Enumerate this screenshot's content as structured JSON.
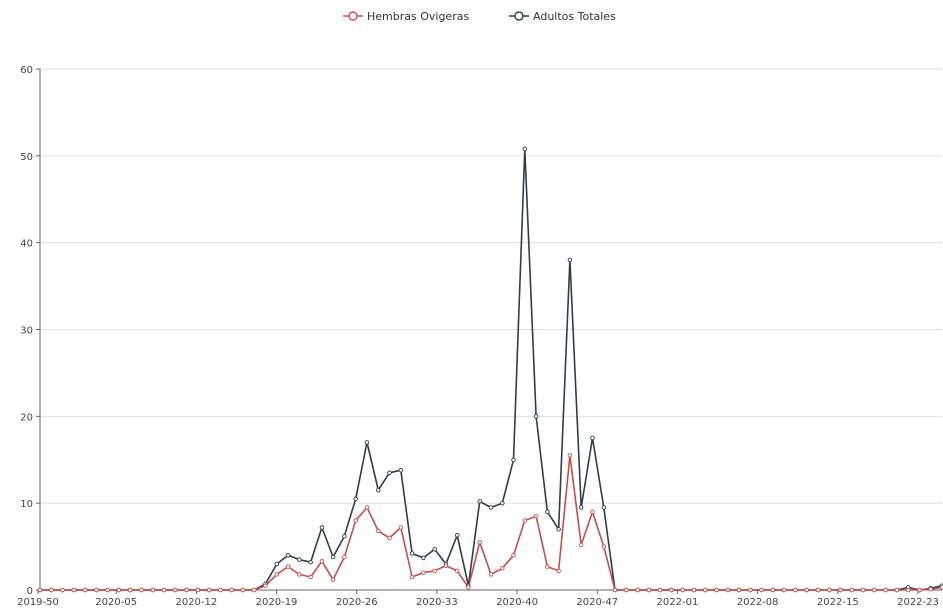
{
  "colors": {
    "hembras": "#c0504d",
    "adultos": "#2f3d4a",
    "grid": "#e0e0e0",
    "axis": "#666666"
  },
  "chart_data": {
    "type": "line",
    "title": "",
    "xlabel": "",
    "ylabel": "",
    "ylim": [
      0,
      60
    ],
    "yticks": [
      0,
      10,
      20,
      30,
      40,
      50,
      60
    ],
    "grid": true,
    "legend_position": "top-center",
    "x_tick_labels": [
      "2019-50",
      "2020-05",
      "2020-12",
      "2020-19",
      "2020-26",
      "2020-33",
      "2020-40",
      "2020-47",
      "2022-01",
      "2022-08",
      "2022-15",
      "2022-23"
    ],
    "series": [
      {
        "name": "Hembras Ovigeras",
        "color": "#c0504d",
        "values": [
          0,
          0,
          0,
          0,
          0,
          0,
          0,
          0,
          0,
          0,
          0,
          0,
          0,
          0,
          0,
          0,
          0,
          0,
          0,
          0,
          0.5,
          1.8,
          2.7,
          1.8,
          1.5,
          3.3,
          1.2,
          3.8,
          8.0,
          9.5,
          6.8,
          6.0,
          7.2,
          1.5,
          2.0,
          2.2,
          2.8,
          2.2,
          0.3,
          5.5,
          1.8,
          2.5,
          4.0,
          8.0,
          8.5,
          2.7,
          2.2,
          15.5,
          5.2,
          9.0,
          5.0,
          0,
          0,
          0,
          0,
          0,
          0,
          0,
          0,
          0,
          0,
          0,
          0,
          0,
          0,
          0,
          0,
          0,
          0,
          0,
          0,
          0,
          0,
          0,
          0,
          0,
          0,
          0,
          0,
          0.1,
          0.3
        ]
      },
      {
        "name": "Adultos Totales",
        "color": "#2f3d4a",
        "values": [
          0,
          0,
          0,
          0,
          0,
          0,
          0,
          0,
          0,
          0,
          0,
          0,
          0,
          0,
          0,
          0,
          0,
          0,
          0,
          0,
          0.7,
          3.0,
          4.0,
          3.5,
          3.2,
          7.2,
          3.8,
          6.2,
          10.5,
          17.0,
          11.5,
          13.5,
          13.8,
          4.2,
          3.7,
          4.7,
          3.0,
          6.3,
          0.5,
          10.2,
          9.5,
          10.0,
          15.0,
          50.8,
          20.0,
          9.0,
          7.0,
          38.0,
          9.5,
          17.5,
          9.5,
          0,
          0,
          0,
          0,
          0,
          0,
          0,
          0,
          0,
          0,
          0,
          0,
          0,
          0,
          0,
          0,
          0,
          0,
          0,
          0,
          0,
          0,
          0,
          0,
          0,
          0,
          0.3,
          0,
          0.2,
          0.5
        ]
      }
    ]
  }
}
